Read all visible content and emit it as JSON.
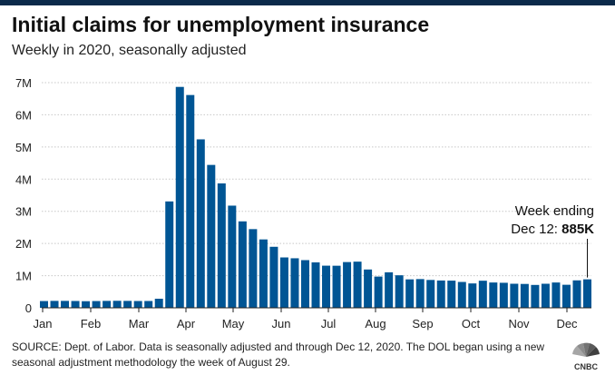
{
  "header": {
    "title": "Initial claims for unemployment insurance",
    "subtitle": "Weekly in 2020, seasonally adjusted"
  },
  "chart_data": {
    "type": "bar",
    "title": "Initial claims for unemployment insurance",
    "subtitle": "Weekly in 2020, seasonally adjusted",
    "unit": "claims",
    "ylim": [
      0,
      7000000
    ],
    "yticks": [
      0,
      1000000,
      2000000,
      3000000,
      4000000,
      5000000,
      6000000,
      7000000
    ],
    "ytick_labels": [
      "0",
      "1M",
      "2M",
      "3M",
      "4M",
      "5M",
      "6M",
      "7M"
    ],
    "month_labels": [
      "Jan",
      "Feb",
      "Mar",
      "Apr",
      "May",
      "Jun",
      "Jul",
      "Aug",
      "Sep",
      "Oct",
      "Nov",
      "Dec"
    ],
    "grid": true,
    "bar_color": "#005594",
    "values": [
      210000,
      215000,
      215000,
      212000,
      205000,
      210000,
      215000,
      218000,
      215000,
      211000,
      212000,
      282000,
      3307000,
      6867000,
      6615000,
      5237000,
      4442000,
      3867000,
      3176000,
      2687000,
      2446000,
      2126000,
      1897000,
      1566000,
      1540000,
      1482000,
      1413000,
      1310000,
      1308000,
      1422000,
      1435000,
      1191000,
      971000,
      1104000,
      1011000,
      884000,
      893000,
      866000,
      849000,
      845000,
      804000,
      758000,
      842000,
      787000,
      778000,
      748000,
      742000,
      711000,
      748000,
      787000,
      716000,
      853000,
      885000
    ],
    "annotation": {
      "line1": "Week ending",
      "line2_prefix": "Dec 12: ",
      "value_label": "885K"
    }
  },
  "footer": {
    "source": "SOURCE: Dept. of Labor. Data is seasonally adjusted and through Dec 12, 2020. The DOL began using a new seasonal adjustment methodology the week of August 29.",
    "logo_text": "CNBC"
  }
}
